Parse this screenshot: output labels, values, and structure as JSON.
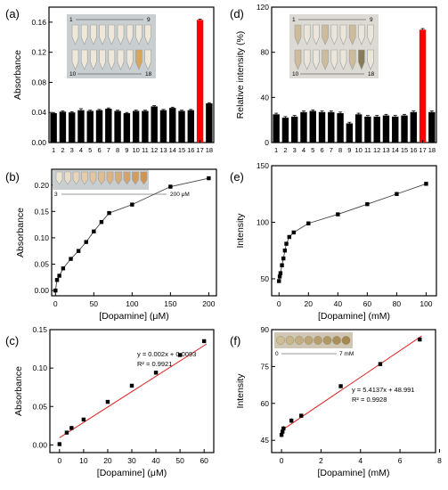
{
  "colors": {
    "bar": "#000000",
    "highlight": "#ff0000",
    "fit": "#e02020",
    "connector": "#444444",
    "photo_bg": "#c9cfd1",
    "photo_bg2": "#dcdad3"
  },
  "chart_data": [
    {
      "panel": "(a)",
      "type": "bar",
      "categories": [
        "1",
        "2",
        "3",
        "4",
        "5",
        "6",
        "7",
        "8",
        "9",
        "10",
        "11",
        "12",
        "13",
        "14",
        "15",
        "16",
        "17",
        "18"
      ],
      "values": [
        0.039,
        0.041,
        0.04,
        0.043,
        0.042,
        0.043,
        0.045,
        0.042,
        0.039,
        0.042,
        0.042,
        0.048,
        0.043,
        0.046,
        0.042,
        0.043,
        0.163,
        0.052
      ],
      "errors": [
        0.001,
        0.001,
        0.001,
        0.002,
        0.001,
        0.001,
        0.001,
        0.001,
        0.001,
        0.001,
        0.001,
        0.001,
        0.001,
        0.001,
        0.001,
        0.001,
        0.001,
        0.001
      ],
      "highlight_index": 16,
      "ylabel": "Absorbance",
      "xlabel": "",
      "ylim": [
        0,
        0.18
      ],
      "yticks": [
        "0.00",
        "0.04",
        "0.08",
        "0.12",
        "0.16"
      ],
      "inset": {
        "top_range": "1",
        "top_end": "9",
        "bottom_range": "10",
        "bottom_end": "18"
      }
    },
    {
      "panel": "(b)",
      "type": "line",
      "x": [
        0,
        2,
        5,
        10,
        20,
        30,
        40,
        50,
        60,
        70,
        100,
        150,
        200
      ],
      "y": [
        0.0,
        0.02,
        0.028,
        0.042,
        0.06,
        0.075,
        0.092,
        0.112,
        0.13,
        0.147,
        0.163,
        0.197,
        0.213
      ],
      "xlabel": "[Dopamine] (μM)",
      "ylabel": "Absorbance",
      "xlim": [
        -5,
        210
      ],
      "ylim": [
        -0.01,
        0.23
      ],
      "xticks": [
        "0",
        "50",
        "100",
        "150",
        "200"
      ],
      "yticks": [
        "0.00",
        "0.05",
        "0.10",
        "0.15",
        "0.20"
      ],
      "inset": {
        "start": "3",
        "end": "200 μM"
      }
    },
    {
      "panel": "(c)",
      "type": "scatter",
      "x": [
        0,
        3,
        5,
        10,
        20,
        30,
        40,
        50,
        60
      ],
      "y": [
        0.001,
        0.016,
        0.022,
        0.033,
        0.056,
        0.077,
        0.094,
        0.117,
        0.135
      ],
      "errors": [
        0.001,
        0.002,
        0.001,
        0.001,
        0.001,
        0.001,
        0.002,
        0.001,
        0.002
      ],
      "fit": {
        "slope": 0.002,
        "intercept": 0.0093,
        "x_range": [
          0,
          61
        ]
      },
      "equation": "y = 0.002x + 0.0093",
      "r2": "R² = 0.9921",
      "xlabel": "[Dopamine] (μM)",
      "ylabel": "Absorbance",
      "xlim": [
        -4,
        64
      ],
      "ylim": [
        -0.01,
        0.15
      ],
      "xticks": [
        "0",
        "10",
        "20",
        "30",
        "40",
        "50",
        "60"
      ],
      "yticks": [
        "0.00",
        "0.05",
        "0.10",
        "0.15"
      ]
    },
    {
      "panel": "(d)",
      "type": "bar",
      "categories": [
        "1",
        "2",
        "3",
        "4",
        "5",
        "6",
        "7",
        "8",
        "9",
        "10",
        "11",
        "12",
        "13",
        "14",
        "15",
        "16",
        "17",
        "18"
      ],
      "values": [
        25,
        22,
        23,
        27,
        28,
        27,
        27,
        26,
        17,
        25,
        23,
        23,
        24,
        23,
        24,
        27,
        100,
        27
      ],
      "errors": [
        1,
        1,
        1,
        1,
        1,
        1,
        1,
        1,
        1,
        1,
        1,
        1,
        1,
        1,
        1,
        1,
        1,
        1
      ],
      "highlight_index": 16,
      "ylabel": "Relative intensity (%)",
      "xlabel": "",
      "ylim": [
        0,
        120
      ],
      "yticks": [
        "0",
        "40",
        "80",
        "120"
      ],
      "inset": {
        "top_range": "1",
        "top_end": "9",
        "bottom_range": "10",
        "bottom_end": "18"
      }
    },
    {
      "panel": "(e)",
      "type": "line",
      "x": [
        0,
        0.5,
        1,
        2,
        3,
        4,
        5,
        7,
        10,
        20,
        40,
        60,
        80,
        100
      ],
      "y": [
        48,
        52,
        55,
        62,
        68,
        75,
        81,
        87,
        91,
        99,
        107,
        116,
        125,
        134
      ],
      "xlabel": "[Dopamine] (mM)",
      "ylabel": "Intensity",
      "xlim": [
        -5,
        107
      ],
      "ylim": [
        35,
        150
      ],
      "xticks": [
        "0",
        "20",
        "40",
        "60",
        "80",
        "100"
      ],
      "yticks": [
        "50",
        "100",
        "150"
      ]
    },
    {
      "panel": "(f)",
      "type": "scatter",
      "x": [
        0,
        0.05,
        0.1,
        0.5,
        1,
        3,
        5,
        7
      ],
      "y": [
        47.2,
        48.5,
        49.8,
        53,
        55,
        67,
        76,
        86
      ],
      "errors": [
        1,
        1,
        1,
        1,
        0.8,
        0.8,
        0.8,
        0.8
      ],
      "fit": {
        "slope": 5.4137,
        "intercept": 48.991,
        "x_range": [
          0,
          7.1
        ]
      },
      "equation": "y = 5.4137x + 48.991",
      "r2": "R² = 0.9928",
      "xlabel": "[Dopamine] (mM)",
      "ylabel": "Intensity",
      "xlim": [
        -0.5,
        7.8
      ],
      "ylim": [
        40,
        90
      ],
      "xticks": [
        "0",
        "2",
        "4",
        "6",
        "8"
      ],
      "yticks": [
        "45",
        "60",
        "75",
        "90"
      ],
      "inset": {
        "start": "0",
        "end": "7 mM"
      }
    }
  ]
}
